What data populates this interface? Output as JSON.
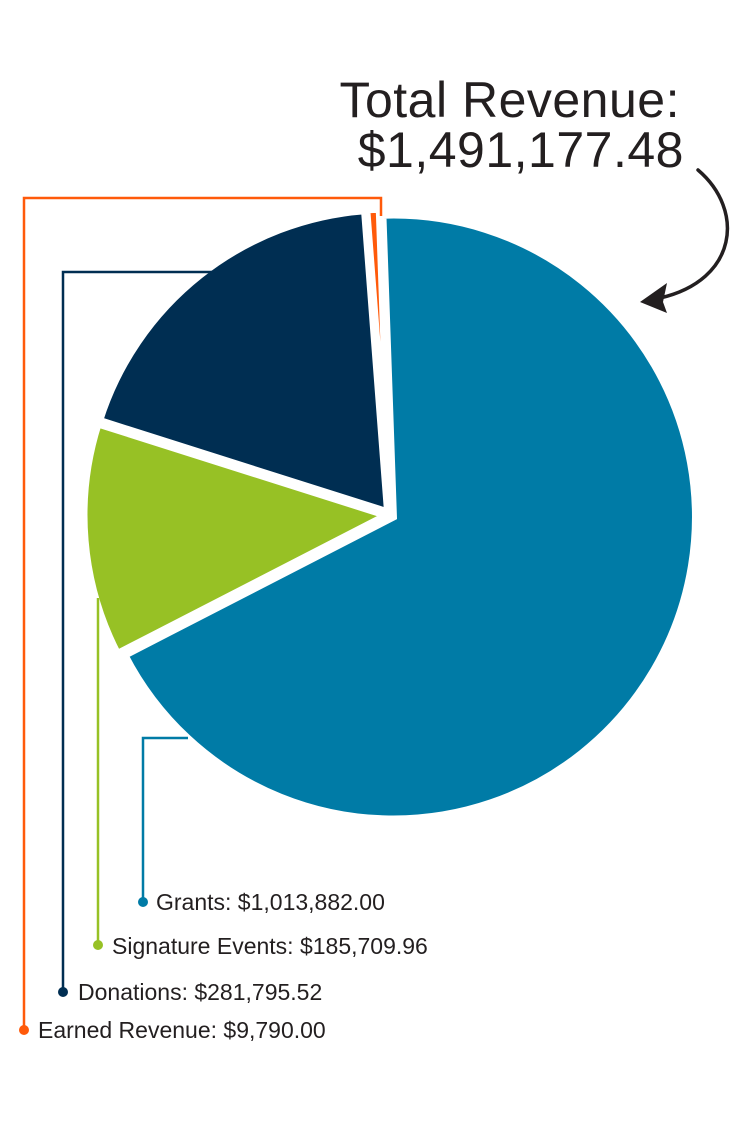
{
  "total": {
    "label": "Total Revenue:",
    "value": "$1,491,177.48"
  },
  "chart_data": {
    "type": "pie",
    "start_angle_deg": -2,
    "slices": [
      {
        "key": "grants",
        "label": "Grants: $1,013,882.00",
        "value": 1013882.0,
        "color": "#007ba6"
      },
      {
        "key": "signature-events",
        "label": "Signature Events: $185,709.96",
        "value": 185709.96,
        "color": "#97c125"
      },
      {
        "key": "donations",
        "label": "Donations: $281,795.52",
        "value": 281795.52,
        "color": "#002e52"
      },
      {
        "key": "earned-revenue",
        "label": "Earned Revenue: $9,790.00",
        "value": 9790.0,
        "color": "#ff5a0a"
      }
    ]
  },
  "colors": {
    "text": "#231f20",
    "background": "#ffffff"
  }
}
